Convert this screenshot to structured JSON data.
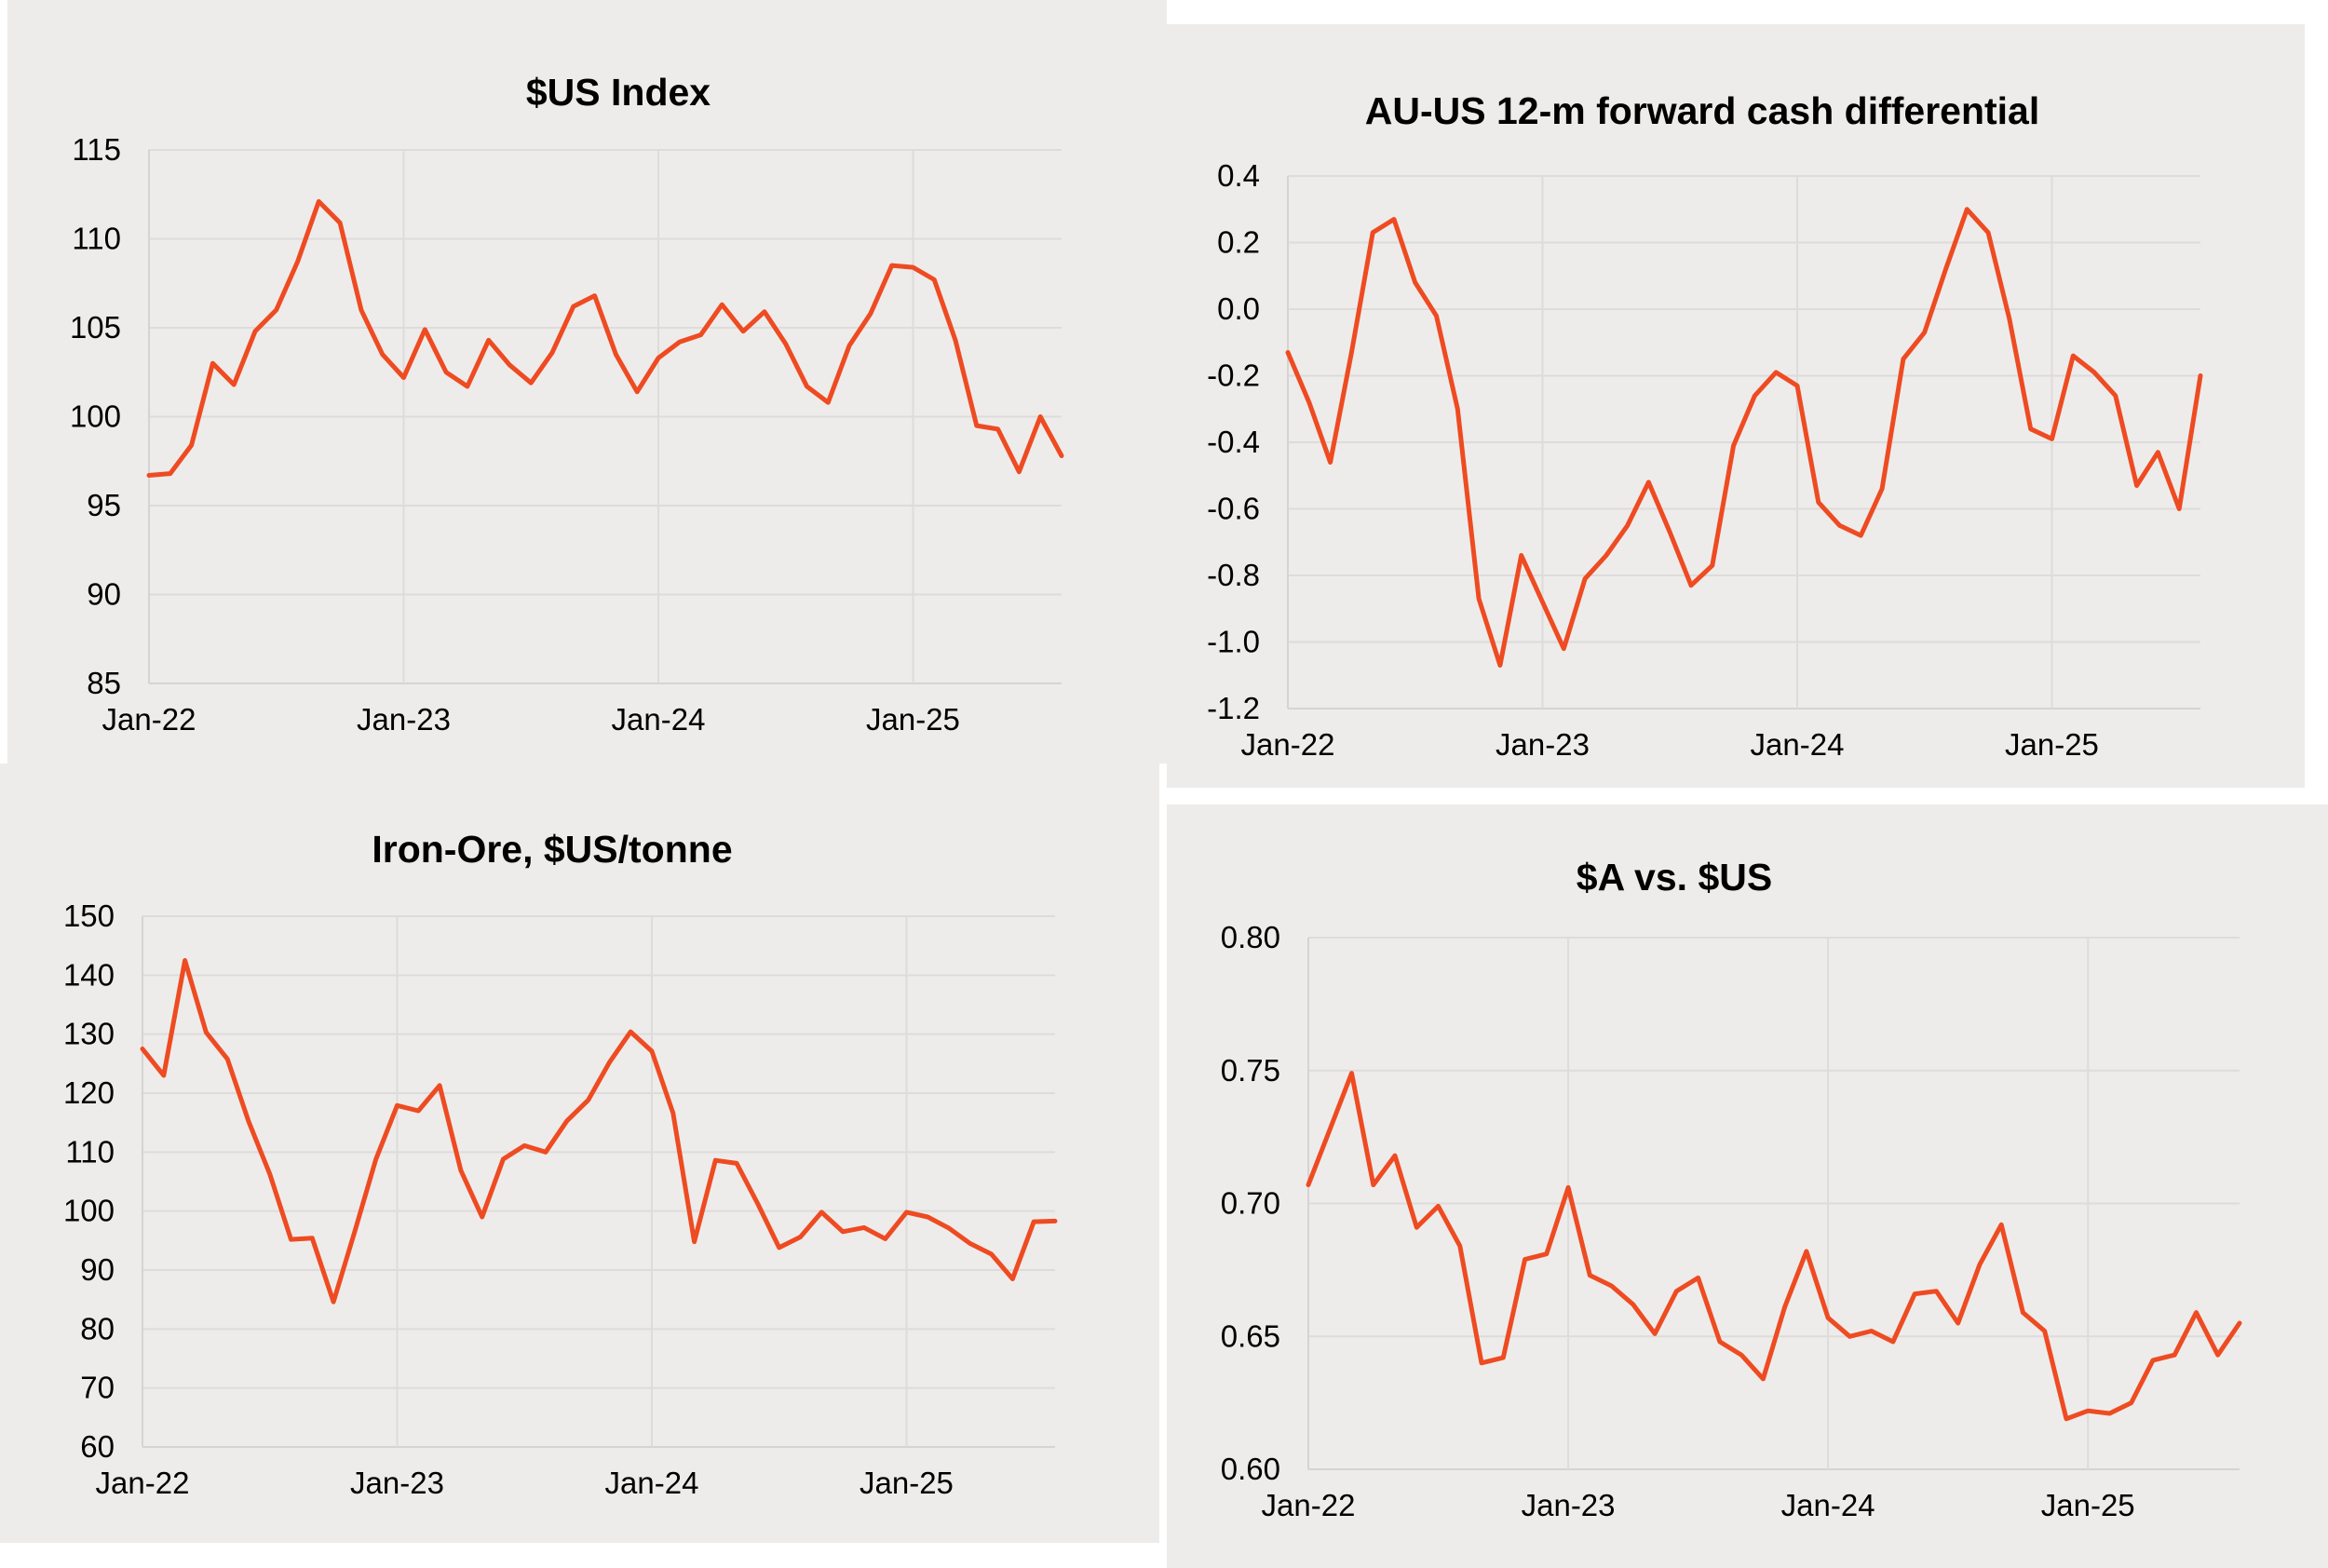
{
  "colors": {
    "series": "#EE4B22",
    "panel_background": "#EEECEA",
    "page_background": "#FFFFFF"
  },
  "chart_data": [
    {
      "type": "line",
      "title": "$US Index",
      "xlabel": "",
      "ylabel": "",
      "x_tick_labels": [
        "Jan-22",
        "Jan-23",
        "Jan-24",
        "Jan-25"
      ],
      "y_ticks": [
        "115",
        "110",
        "105",
        "100",
        "95",
        "90",
        "85"
      ],
      "ylim": [
        85,
        115
      ],
      "grid": true,
      "series": [
        {
          "values": [
            96.7,
            96.8,
            98.4,
            103.0,
            101.8,
            104.8,
            106.0,
            108.7,
            112.1,
            110.9,
            106.0,
            103.5,
            102.2,
            104.9,
            102.5,
            101.7,
            104.3,
            102.9,
            101.9,
            103.6,
            106.2,
            106.8,
            103.5,
            101.4,
            103.3,
            104.2,
            104.6,
            106.3,
            104.8,
            105.9,
            104.1,
            101.7,
            100.8,
            104.0,
            105.8,
            108.5,
            108.4,
            107.7,
            104.3,
            99.5,
            99.3,
            96.9,
            100.0,
            97.8
          ]
        }
      ]
    },
    {
      "type": "line",
      "title": "AU-US 12-m forward cash differential",
      "xlabel": "",
      "ylabel": "",
      "x_tick_labels": [
        "Jan-22",
        "Jan-23",
        "Jan-24",
        "Jan-25"
      ],
      "y_ticks": [
        "0.4",
        "0.2",
        "0.0",
        "-0.2",
        "-0.4",
        "-0.6",
        "-0.8",
        "-1.0",
        "-1.2"
      ],
      "ylim": [
        -1.2,
        0.4
      ],
      "grid": true,
      "series": [
        {
          "values": [
            -0.13,
            -0.28,
            -0.46,
            -0.13,
            0.23,
            0.27,
            0.08,
            -0.02,
            -0.3,
            -0.87,
            -1.07,
            -0.74,
            -0.88,
            -1.02,
            -0.81,
            -0.74,
            -0.65,
            -0.52,
            -0.67,
            -0.83,
            -0.77,
            -0.41,
            -0.26,
            -0.19,
            -0.23,
            -0.58,
            -0.65,
            -0.68,
            -0.54,
            -0.15,
            -0.07,
            0.12,
            0.3,
            0.23,
            -0.03,
            -0.36,
            -0.39,
            -0.14,
            -0.19,
            -0.26,
            -0.53,
            -0.43,
            -0.6,
            -0.2
          ]
        }
      ]
    },
    {
      "type": "line",
      "title": "Iron-Ore, $US/tonne",
      "xlabel": "",
      "ylabel": "",
      "x_tick_labels": [
        "Jan-22",
        "Jan-23",
        "Jan-24",
        "Jan-25"
      ],
      "y_ticks": [
        "150",
        "140",
        "130",
        "120",
        "110",
        "100",
        "90",
        "80",
        "70",
        "60"
      ],
      "ylim": [
        60,
        150
      ],
      "grid": true,
      "series": [
        {
          "values": [
            127.5,
            123.0,
            142.5,
            130.3,
            125.8,
            115.2,
            106.3,
            95.2,
            95.4,
            84.6,
            96.5,
            108.8,
            117.9,
            117.0,
            121.3,
            106.9,
            99.0,
            108.8,
            111.1,
            110.0,
            115.3,
            118.8,
            125.2,
            130.4,
            127.1,
            116.6,
            94.8,
            108.6,
            108.1,
            101.2,
            93.8,
            95.6,
            99.8,
            96.5,
            97.2,
            95.3,
            99.8,
            99.0,
            97.1,
            94.5,
            92.7,
            88.5,
            98.2,
            98.3
          ]
        }
      ]
    },
    {
      "type": "line",
      "title": "$A vs. $US",
      "xlabel": "",
      "ylabel": "",
      "x_tick_labels": [
        "Jan-22",
        "Jan-23",
        "Jan-24",
        "Jan-25"
      ],
      "y_ticks": [
        "0.80",
        "0.75",
        "0.70",
        "0.65",
        "0.60"
      ],
      "ylim": [
        0.6,
        0.8
      ],
      "grid": true,
      "series": [
        {
          "values": [
            0.707,
            0.728,
            0.749,
            0.707,
            0.718,
            0.691,
            0.699,
            0.684,
            0.64,
            0.642,
            0.679,
            0.681,
            0.706,
            0.673,
            0.669,
            0.662,
            0.651,
            0.667,
            0.672,
            0.648,
            0.643,
            0.634,
            0.661,
            0.682,
            0.657,
            0.65,
            0.652,
            0.648,
            0.666,
            0.667,
            0.655,
            0.677,
            0.692,
            0.659,
            0.652,
            0.619,
            0.622,
            0.621,
            0.625,
            0.641,
            0.643,
            0.659,
            0.643,
            0.655
          ]
        }
      ]
    }
  ]
}
